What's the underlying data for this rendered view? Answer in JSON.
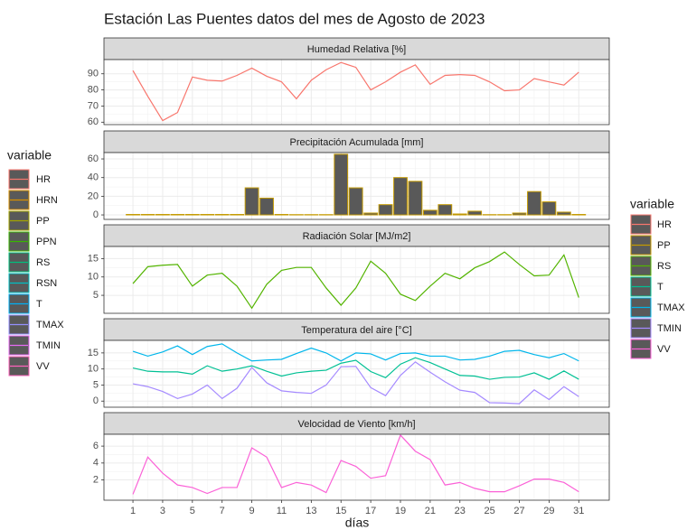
{
  "title": "Estación Las Puentes datos del mes de Agosto de 2023",
  "x_label": "días",
  "legends": [
    {
      "title": "variable",
      "items": [
        {
          "name": "HR",
          "color": "#F8766D"
        },
        {
          "name": "HRN",
          "color": "#D89000"
        },
        {
          "name": "PP",
          "color": "#A3A500"
        },
        {
          "name": "PPN",
          "color": "#39B600"
        },
        {
          "name": "RS",
          "color": "#00BF7D"
        },
        {
          "name": "RSN",
          "color": "#00BFC4"
        },
        {
          "name": "T",
          "color": "#00B0F6"
        },
        {
          "name": "TMAX",
          "color": "#9590FF"
        },
        {
          "name": "TMIN",
          "color": "#E76BF3"
        },
        {
          "name": "VV",
          "color": "#FF62BC"
        }
      ]
    },
    {
      "title": "variable",
      "items": [
        {
          "name": "HR",
          "color": "#F8766D"
        },
        {
          "name": "PP",
          "color": "#C49A00"
        },
        {
          "name": "RS",
          "color": "#53B400"
        },
        {
          "name": "T",
          "color": "#00C094"
        },
        {
          "name": "TMAX",
          "color": "#00B6EB"
        },
        {
          "name": "TMIN",
          "color": "#A58AFF"
        },
        {
          "name": "VV",
          "color": "#FB61D7"
        }
      ]
    }
  ],
  "chart_data": [
    {
      "type": "line",
      "strip": "Humedad Relativa [%]",
      "x": [
        1,
        2,
        3,
        4,
        5,
        6,
        7,
        8,
        9,
        10,
        11,
        12,
        13,
        14,
        15,
        16,
        17,
        18,
        19,
        20,
        21,
        22,
        23,
        24,
        25,
        26,
        27,
        28,
        29,
        30,
        31
      ],
      "xlim": [
        -0.95,
        33.05
      ],
      "xticks": [
        1,
        3,
        5,
        7,
        9,
        11,
        13,
        15,
        17,
        19,
        21,
        23,
        25,
        27,
        29,
        31
      ],
      "ylim": [
        58.5,
        98.8
      ],
      "yticks": [
        60,
        70,
        80,
        90
      ],
      "grid": true,
      "series": [
        {
          "name": "HR",
          "color": "#F8766D",
          "values": [
            92,
            76,
            61,
            66,
            88,
            86,
            85.5,
            89,
            93.5,
            88.5,
            85,
            74.5,
            86,
            92.5,
            97,
            94,
            80,
            85,
            91,
            95.5,
            83.5,
            89,
            89.5,
            89,
            85,
            79.5,
            80,
            87,
            85,
            83,
            91
          ]
        }
      ]
    },
    {
      "type": "bar",
      "strip": "Precipitación Acumulada [mm]",
      "x": [
        1,
        2,
        3,
        4,
        5,
        6,
        7,
        8,
        9,
        10,
        11,
        12,
        13,
        14,
        15,
        16,
        17,
        18,
        19,
        20,
        21,
        22,
        23,
        24,
        25,
        26,
        27,
        28,
        29,
        30,
        31
      ],
      "xlim": [
        -0.95,
        33.05
      ],
      "xticks": [
        1,
        3,
        5,
        7,
        9,
        11,
        13,
        15,
        17,
        19,
        21,
        23,
        25,
        27,
        29,
        31
      ],
      "ylim": [
        -4.8,
        66.8
      ],
      "yticks": [
        0,
        20,
        40,
        60
      ],
      "grid": true,
      "fill": "#595959",
      "series": [
        {
          "name": "PP",
          "color": "#C49A00",
          "values": [
            0.5,
            0.5,
            0.5,
            0.5,
            0.5,
            0.5,
            0.5,
            0.5,
            29,
            18,
            0.5,
            0.3,
            0.3,
            0.3,
            65,
            29,
            2,
            11,
            40,
            36,
            5,
            11,
            1,
            4,
            0.3,
            0.3,
            2,
            25,
            14,
            3,
            0.5
          ]
        }
      ]
    },
    {
      "type": "line",
      "strip": "Radiación Solar [MJ/m2]",
      "x": [
        1,
        2,
        3,
        4,
        5,
        6,
        7,
        8,
        9,
        10,
        11,
        12,
        13,
        14,
        15,
        16,
        17,
        18,
        19,
        20,
        21,
        22,
        23,
        24,
        25,
        26,
        27,
        28,
        29,
        30,
        31
      ],
      "xlim": [
        -0.95,
        33.05
      ],
      "xticks": [
        1,
        3,
        5,
        7,
        9,
        11,
        13,
        15,
        17,
        19,
        21,
        23,
        25,
        27,
        29,
        31
      ],
      "ylim": [
        0.1,
        18.3
      ],
      "yticks": [
        5,
        10,
        15
      ],
      "grid": true,
      "series": [
        {
          "name": "RS",
          "color": "#53B400",
          "values": [
            8.2,
            12.8,
            13.2,
            13.4,
            7.5,
            10.5,
            11,
            7.5,
            1.5,
            8,
            11.8,
            12.6,
            12.6,
            7,
            2.3,
            7,
            14.3,
            11,
            5.3,
            3.6,
            7.5,
            11,
            9.5,
            12.5,
            14.2,
            16.8,
            13.4,
            10.3,
            10.5,
            16,
            4.4
          ]
        }
      ]
    },
    {
      "type": "line",
      "strip": "Temperatura del aire [°C]",
      "x": [
        1,
        2,
        3,
        4,
        5,
        6,
        7,
        8,
        9,
        10,
        11,
        12,
        13,
        14,
        15,
        16,
        17,
        18,
        19,
        20,
        21,
        22,
        23,
        24,
        25,
        26,
        27,
        28,
        29,
        30,
        31
      ],
      "xlim": [
        -0.95,
        33.05
      ],
      "xticks": [
        1,
        3,
        5,
        7,
        9,
        11,
        13,
        15,
        17,
        19,
        21,
        23,
        25,
        27,
        29,
        31
      ],
      "ylim": [
        -1.9,
        18.9
      ],
      "yticks": [
        0,
        5,
        10,
        15
      ],
      "grid": true,
      "series": [
        {
          "name": "T",
          "color": "#00C094",
          "values": [
            10.3,
            9.3,
            9.1,
            9.1,
            8.4,
            11,
            9.3,
            10,
            11,
            9.3,
            7.8,
            8.8,
            9.3,
            9.6,
            11.8,
            12.7,
            9.2,
            7.3,
            11.5,
            13.5,
            12,
            10,
            8,
            7.8,
            6.8,
            7.4,
            7.5,
            8.8,
            6.8,
            9.4,
            6.8
          ]
        },
        {
          "name": "TMAX",
          "color": "#00B6EB",
          "values": [
            15.5,
            14,
            15.3,
            17.2,
            14.5,
            17,
            17.8,
            15,
            12.5,
            12.8,
            13,
            14.8,
            16.5,
            15,
            12.5,
            15,
            14.7,
            12.8,
            14.8,
            15,
            14,
            14,
            12.8,
            13,
            14,
            15.5,
            15.8,
            14.5,
            13.5,
            14.8,
            12.5
          ]
        },
        {
          "name": "TMIN",
          "color": "#A58AFF",
          "values": [
            5.4,
            4.5,
            3,
            0.8,
            2.2,
            5,
            0.8,
            4,
            10.5,
            5.7,
            3.2,
            2.7,
            2.4,
            5,
            10.7,
            10.8,
            4.2,
            1.7,
            8,
            12.2,
            9,
            6,
            3.4,
            2.7,
            -0.5,
            -0.6,
            -0.8,
            3.5,
            0.5,
            4.5,
            1.4
          ]
        }
      ]
    },
    {
      "type": "line",
      "strip": "Velocidad de Viento [km/h]",
      "x": [
        1,
        2,
        3,
        4,
        5,
        6,
        7,
        8,
        9,
        10,
        11,
        12,
        13,
        14,
        15,
        16,
        17,
        18,
        19,
        20,
        21,
        22,
        23,
        24,
        25,
        26,
        27,
        28,
        29,
        30,
        31
      ],
      "xlim": [
        -0.95,
        33.05
      ],
      "xticks": [
        1,
        3,
        5,
        7,
        9,
        11,
        13,
        15,
        17,
        19,
        21,
        23,
        25,
        27,
        29,
        31
      ],
      "ylim": [
        -0.4,
        7.4
      ],
      "yticks": [
        2,
        4,
        6
      ],
      "grid": true,
      "series": [
        {
          "name": "VV",
          "color": "#FB61D7",
          "values": [
            0.3,
            4.7,
            2.8,
            1.4,
            1.1,
            0.4,
            1.1,
            1.1,
            5.8,
            4.7,
            1.1,
            1.7,
            1.4,
            0.5,
            4.3,
            3.6,
            2.2,
            2.5,
            7.3,
            5.4,
            4.4,
            1.4,
            1.7,
            1.0,
            0.6,
            0.6,
            1.3,
            2.1,
            2.1,
            1.7,
            0.6
          ]
        }
      ]
    }
  ]
}
